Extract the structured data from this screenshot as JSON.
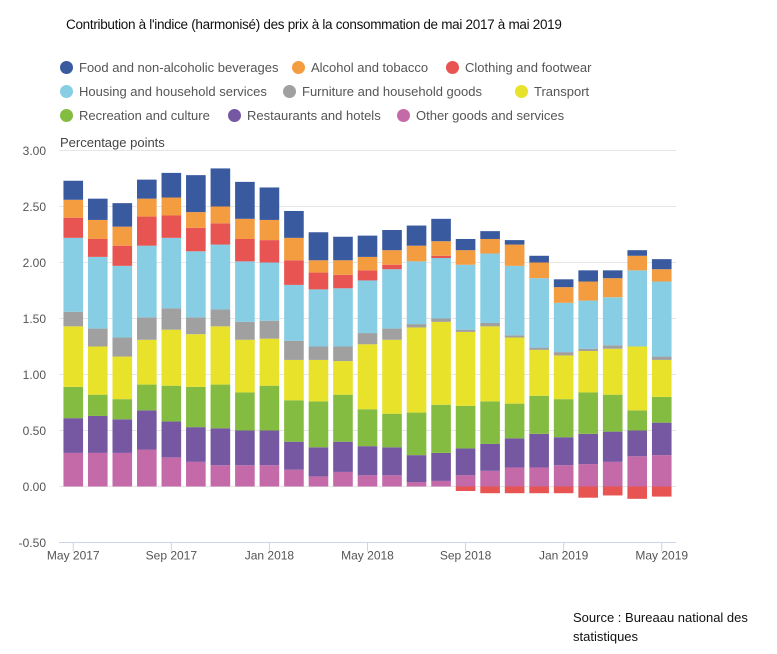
{
  "title": "Contribution à l'indice (harmonisé) des prix à la consommation de mai 2017 à mai 2019",
  "source": [
    "Source : Bureaau national des",
    "statistiques"
  ],
  "chart_data": {
    "type": "bar",
    "stacked": true,
    "title": "Contribution à l'indice (harmonisé) des prix à la consommation de mai 2017 à mai 2019",
    "ylabel": "Percentage points",
    "xlabel": "",
    "ylim": [
      -0.5,
      3.0
    ],
    "yticks": [
      "3.00",
      "2.50",
      "2.00",
      "1.50",
      "1.00",
      "0.50",
      "0.00",
      "-0.50"
    ],
    "ytick_values": [
      3.0,
      2.5,
      2.0,
      1.5,
      1.0,
      0.5,
      0.0,
      -0.5
    ],
    "grid": true,
    "legend_position": "top",
    "categories": [
      "May 2017",
      "Jun 2017",
      "Jul 2017",
      "Aug 2017",
      "Sep 2017",
      "Oct 2017",
      "Nov 2017",
      "Dec 2017",
      "Jan 2018",
      "Feb 2018",
      "Mar 2018",
      "Apr 2018",
      "May 2018",
      "Jun 2018",
      "Jul 2018",
      "Aug 2018",
      "Sep 2018",
      "Oct 2018",
      "Nov 2018",
      "Dec 2018",
      "Jan 2019",
      "Feb 2019",
      "Mar 2019",
      "Apr 2019",
      "May 2019"
    ],
    "xtick_labels": [
      {
        "index": 0,
        "label": "May 2017"
      },
      {
        "index": 4,
        "label": "Sep 2017"
      },
      {
        "index": 8,
        "label": "Jan 2018"
      },
      {
        "index": 12,
        "label": "May 2018"
      },
      {
        "index": 16,
        "label": "Sep 2018"
      },
      {
        "index": 20,
        "label": "Jan 2019"
      },
      {
        "index": 24,
        "label": "May 2019"
      }
    ],
    "series": [
      {
        "name": "Other goods and services",
        "color": "#c46aa8",
        "values": [
          0.3,
          0.3,
          0.3,
          0.33,
          0.26,
          0.22,
          0.19,
          0.19,
          0.19,
          0.15,
          0.09,
          0.13,
          0.1,
          0.1,
          0.04,
          0.05,
          0.1,
          0.14,
          0.17,
          0.17,
          0.19,
          0.2,
          0.22,
          0.27,
          0.28
        ]
      },
      {
        "name": "Restaurants and hotels",
        "color": "#7557a2",
        "values": [
          0.31,
          0.33,
          0.3,
          0.35,
          0.32,
          0.31,
          0.33,
          0.31,
          0.31,
          0.25,
          0.26,
          0.27,
          0.26,
          0.25,
          0.24,
          0.25,
          0.24,
          0.24,
          0.26,
          0.3,
          0.25,
          0.27,
          0.27,
          0.23,
          0.29
        ]
      },
      {
        "name": "Recreation and culture",
        "color": "#84bc41",
        "values": [
          0.28,
          0.19,
          0.18,
          0.23,
          0.32,
          0.36,
          0.39,
          0.34,
          0.4,
          0.37,
          0.41,
          0.42,
          0.33,
          0.3,
          0.38,
          0.43,
          0.38,
          0.38,
          0.31,
          0.34,
          0.34,
          0.37,
          0.33,
          0.18,
          0.23
        ]
      },
      {
        "name": "Transport",
        "color": "#e8e22a",
        "values": [
          0.54,
          0.43,
          0.38,
          0.4,
          0.5,
          0.47,
          0.52,
          0.47,
          0.42,
          0.36,
          0.37,
          0.3,
          0.58,
          0.66,
          0.76,
          0.74,
          0.66,
          0.67,
          0.59,
          0.41,
          0.39,
          0.37,
          0.41,
          0.57,
          0.33
        ]
      },
      {
        "name": "Furniture and household goods",
        "color": "#a0a0a0",
        "values": [
          0.13,
          0.16,
          0.17,
          0.2,
          0.19,
          0.15,
          0.15,
          0.16,
          0.16,
          0.17,
          0.12,
          0.13,
          0.1,
          0.1,
          0.03,
          0.03,
          0.02,
          0.03,
          0.02,
          0.02,
          0.03,
          0.02,
          0.03,
          0.0,
          0.03
        ]
      },
      {
        "name": "Housing and household services",
        "color": "#87cde3",
        "values": [
          0.66,
          0.64,
          0.64,
          0.64,
          0.63,
          0.59,
          0.58,
          0.54,
          0.52,
          0.5,
          0.51,
          0.52,
          0.47,
          0.53,
          0.56,
          0.54,
          0.58,
          0.62,
          0.62,
          0.62,
          0.44,
          0.43,
          0.43,
          0.68,
          0.67
        ]
      },
      {
        "name": "Clothing and footwear",
        "color": "#e85452",
        "values": [
          0.18,
          0.16,
          0.18,
          0.26,
          0.2,
          0.21,
          0.19,
          0.2,
          0.2,
          0.22,
          0.15,
          0.12,
          0.09,
          0.04,
          0.0,
          0.02,
          -0.04,
          -0.06,
          -0.06,
          -0.06,
          -0.06,
          -0.1,
          -0.08,
          -0.11,
          -0.09
        ]
      },
      {
        "name": "Alcohol and tobacco",
        "color": "#f49c40",
        "values": [
          0.16,
          0.17,
          0.17,
          0.16,
          0.16,
          0.14,
          0.15,
          0.18,
          0.18,
          0.2,
          0.11,
          0.13,
          0.12,
          0.13,
          0.14,
          0.13,
          0.13,
          0.13,
          0.19,
          0.14,
          0.14,
          0.17,
          0.17,
          0.13,
          0.11
        ]
      },
      {
        "name": "Food and non-alcoholic beverages",
        "color": "#3a5aa0",
        "values": [
          0.17,
          0.19,
          0.21,
          0.17,
          0.22,
          0.33,
          0.34,
          0.33,
          0.29,
          0.24,
          0.25,
          0.21,
          0.19,
          0.18,
          0.18,
          0.2,
          0.1,
          0.07,
          0.04,
          0.06,
          0.07,
          0.1,
          0.07,
          0.05,
          0.09
        ]
      }
    ]
  },
  "legend": [
    {
      "label": "Food and non-alcoholic beverages",
      "color": "#3a5aa0"
    },
    {
      "label": "Alcohol and tobacco",
      "color": "#f49c40"
    },
    {
      "label": "Clothing and footwear",
      "color": "#e85452"
    },
    {
      "label": "Housing and household services",
      "color": "#87cde3"
    },
    {
      "label": "Furniture and household goods",
      "color": "#a0a0a0"
    },
    {
      "label": "Transport",
      "color": "#e8e22a"
    },
    {
      "label": "Recreation and culture",
      "color": "#84bc41"
    },
    {
      "label": "Restaurants and hotels",
      "color": "#7557a2"
    },
    {
      "label": "Other goods and services",
      "color": "#c46aa8"
    }
  ]
}
